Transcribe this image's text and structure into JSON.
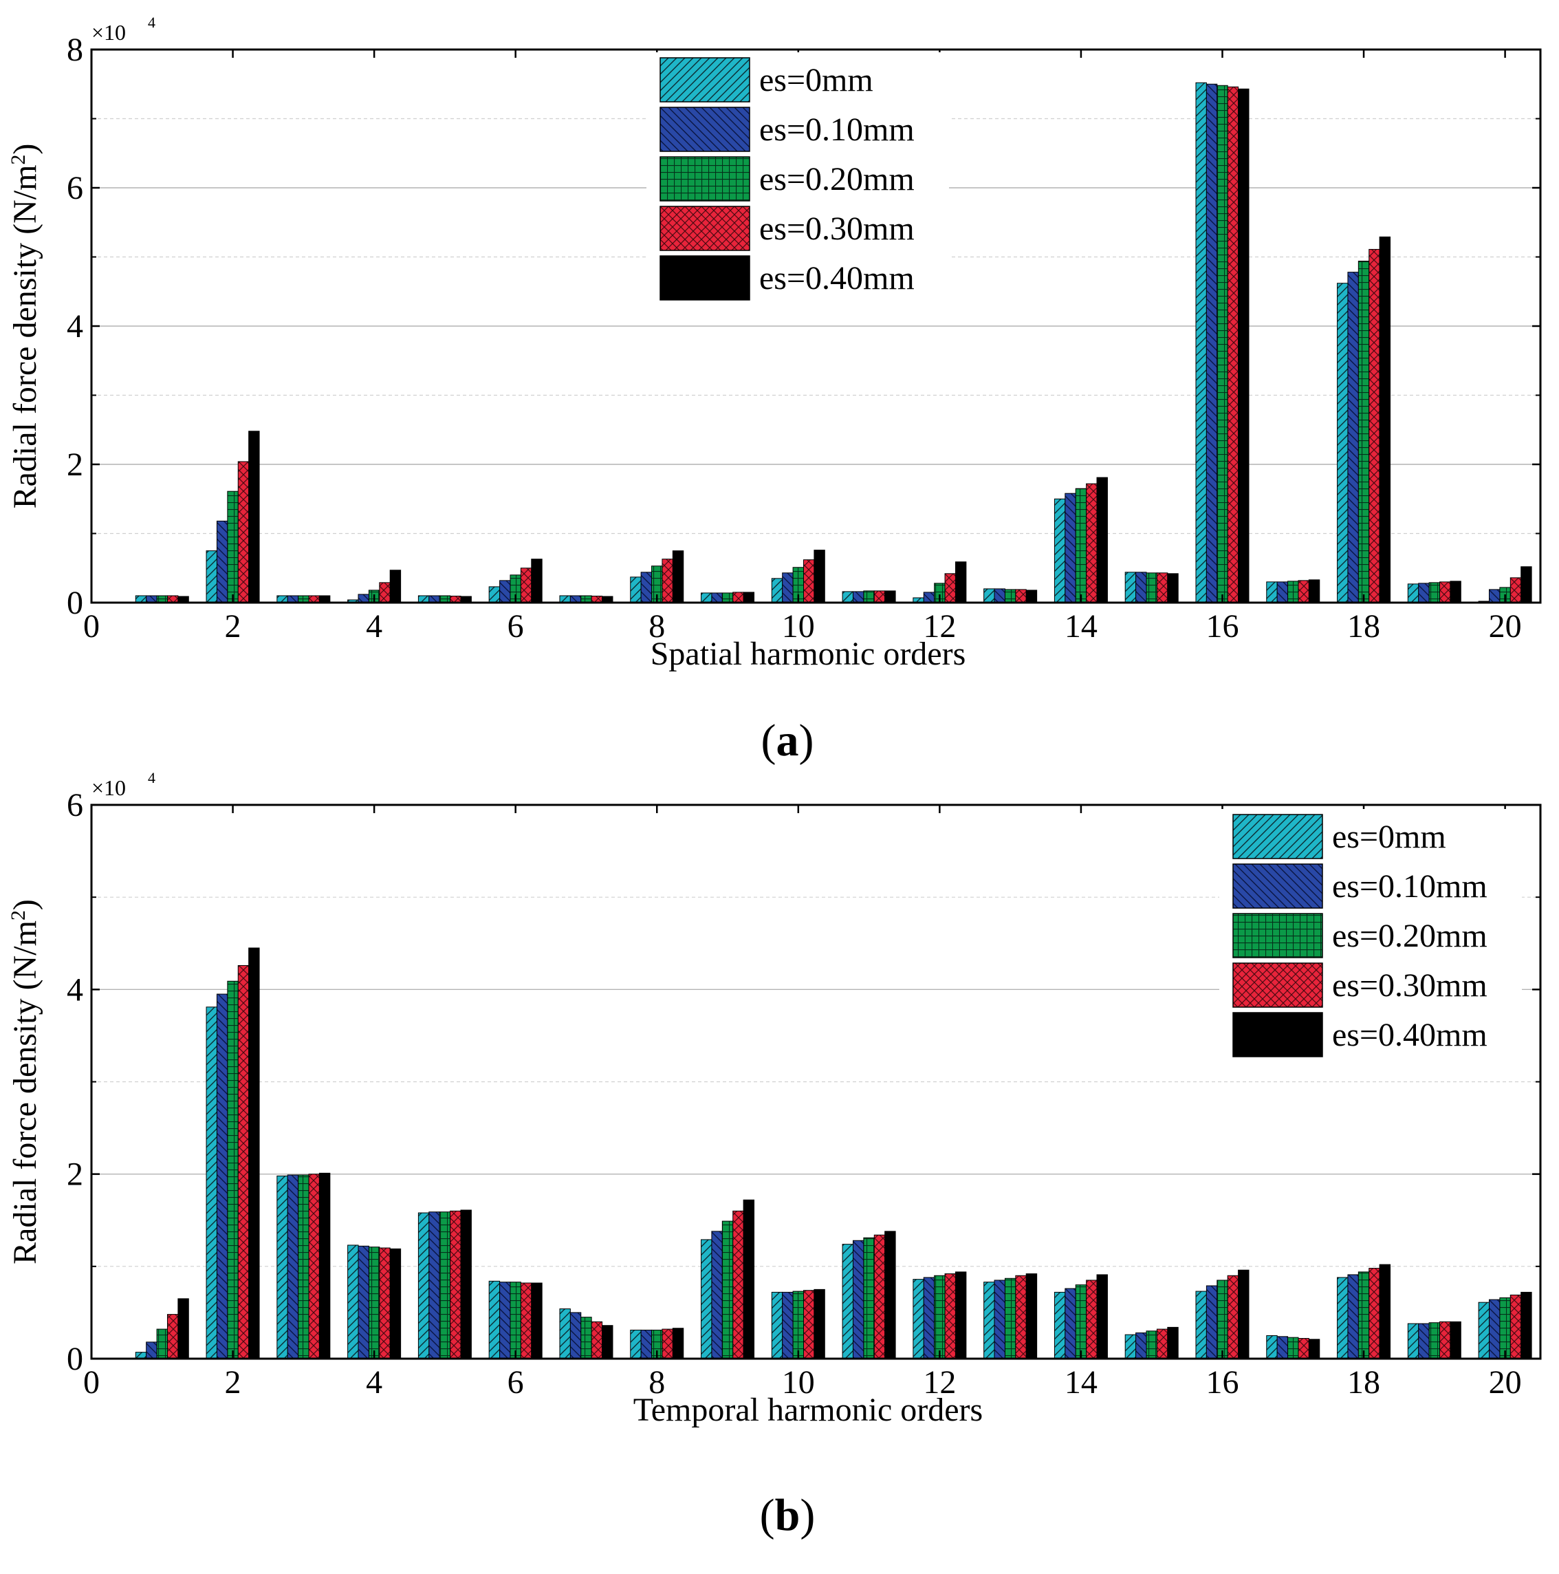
{
  "chart_data": [
    {
      "type": "bar",
      "panel_label": "(a)",
      "panel_label_parts": [
        "(",
        "a",
        ")"
      ],
      "xlabel": "Spatial harmonic orders",
      "ylabel": "Radial force density (N/m",
      "ylabel_sup": "2",
      "ylabel_close": ")",
      "y_multiplier_base": "×10",
      "y_multiplier_exp": "4",
      "ylim": [
        0,
        80000
      ],
      "yticks": [
        0,
        20000,
        40000,
        60000,
        80000
      ],
      "ytick_labels": [
        "0",
        "2",
        "4",
        "6",
        "8"
      ],
      "xlim": [
        0,
        20.5
      ],
      "xticks": [
        0,
        2,
        4,
        6,
        8,
        10,
        12,
        14,
        16,
        18,
        20
      ],
      "xtick_labels": [
        "0",
        "2",
        "4",
        "6",
        "8",
        "10",
        "12",
        "14",
        "16",
        "18",
        "20"
      ],
      "grid": true,
      "legend_position": "top-center",
      "categories": [
        1,
        2,
        3,
        4,
        5,
        6,
        7,
        8,
        9,
        10,
        11,
        12,
        13,
        14,
        15,
        16,
        17,
        18,
        19,
        20
      ],
      "series": [
        {
          "name": "es=0mm",
          "color": "#1fb6c8",
          "pattern": "diag-right",
          "values": [
            1000,
            7500,
            1000,
            400,
            1000,
            2300,
            1000,
            3700,
            1400,
            3500,
            1600,
            700,
            2000,
            15000,
            4400,
            75200,
            3000,
            46200,
            2700,
            200
          ]
        },
        {
          "name": "es=0.10mm",
          "color": "#2948a6",
          "pattern": "diag-left",
          "values": [
            1000,
            11800,
            1000,
            1200,
            1000,
            3200,
            1000,
            4400,
            1400,
            4300,
            1600,
            1500,
            2000,
            15800,
            4400,
            75000,
            3000,
            47800,
            2800,
            1900
          ]
        },
        {
          "name": "es=0.20mm",
          "color": "#0b9a48",
          "pattern": "grid",
          "values": [
            1000,
            16100,
            1000,
            1800,
            1000,
            4000,
            1000,
            5300,
            1400,
            5100,
            1700,
            2800,
            1900,
            16500,
            4300,
            74800,
            3100,
            49400,
            2900,
            2200
          ]
        },
        {
          "name": "es=0.30mm",
          "color": "#e8243b",
          "pattern": "cross",
          "values": [
            1000,
            20400,
            1000,
            2900,
            950,
            5000,
            950,
            6300,
            1500,
            6200,
            1700,
            4200,
            1900,
            17200,
            4300,
            74600,
            3200,
            51100,
            3000,
            3600
          ]
        },
        {
          "name": "es=0.40mm",
          "color": "#000000",
          "pattern": "solid",
          "values": [
            900,
            24800,
            1000,
            4700,
            900,
            6300,
            900,
            7500,
            1500,
            7600,
            1700,
            5900,
            1800,
            18100,
            4200,
            74300,
            3300,
            52900,
            3100,
            5200
          ]
        }
      ]
    },
    {
      "type": "bar",
      "panel_label": "(b)",
      "panel_label_parts": [
        "(",
        "b",
        ")"
      ],
      "xlabel": "Temporal harmonic orders",
      "ylabel": "Radial force density (N/m",
      "ylabel_sup": "2",
      "ylabel_close": ")",
      "y_multiplier_base": "×10",
      "y_multiplier_exp": "4",
      "ylim": [
        0,
        60000
      ],
      "yticks": [
        0,
        20000,
        40000,
        60000
      ],
      "ytick_labels": [
        "0",
        "2",
        "4",
        "6"
      ],
      "xlim": [
        0,
        20.5
      ],
      "xticks": [
        0,
        2,
        4,
        6,
        8,
        10,
        12,
        14,
        16,
        18,
        20
      ],
      "xtick_labels": [
        "0",
        "2",
        "4",
        "6",
        "8",
        "10",
        "12",
        "14",
        "16",
        "18",
        "20"
      ],
      "grid": true,
      "legend_position": "top-right",
      "categories": [
        1,
        2,
        3,
        4,
        5,
        6,
        7,
        8,
        9,
        10,
        11,
        12,
        13,
        14,
        15,
        16,
        17,
        18,
        19,
        20
      ],
      "series": [
        {
          "name": "es=0mm",
          "color": "#1fb6c8",
          "pattern": "diag-right",
          "values": [
            700,
            38100,
            19800,
            12300,
            15800,
            8400,
            5400,
            3100,
            12900,
            7200,
            12400,
            8600,
            8300,
            7200,
            2600,
            7300,
            2500,
            8800,
            3800,
            6100
          ]
        },
        {
          "name": "es=0.10mm",
          "color": "#2948a6",
          "pattern": "diag-left",
          "values": [
            1800,
            39500,
            19900,
            12200,
            15900,
            8300,
            5000,
            3100,
            13800,
            7200,
            12800,
            8800,
            8500,
            7600,
            2800,
            7900,
            2400,
            9100,
            3800,
            6400
          ]
        },
        {
          "name": "es=0.20mm",
          "color": "#0b9a48",
          "pattern": "grid",
          "values": [
            3200,
            40900,
            19900,
            12100,
            15900,
            8300,
            4500,
            3100,
            14900,
            7300,
            13100,
            9000,
            8700,
            8000,
            3000,
            8500,
            2300,
            9400,
            3900,
            6600
          ]
        },
        {
          "name": "es=0.30mm",
          "color": "#e8243b",
          "pattern": "cross",
          "values": [
            4800,
            42600,
            20000,
            12000,
            16000,
            8200,
            4000,
            3200,
            16000,
            7400,
            13400,
            9200,
            9000,
            8500,
            3200,
            9000,
            2200,
            9800,
            4000,
            6900
          ]
        },
        {
          "name": "es=0.40mm",
          "color": "#000000",
          "pattern": "solid",
          "values": [
            6500,
            44500,
            20100,
            11900,
            16100,
            8200,
            3600,
            3300,
            17200,
            7500,
            13800,
            9400,
            9200,
            9100,
            3400,
            9600,
            2100,
            10200,
            4000,
            7200
          ]
        }
      ]
    }
  ]
}
